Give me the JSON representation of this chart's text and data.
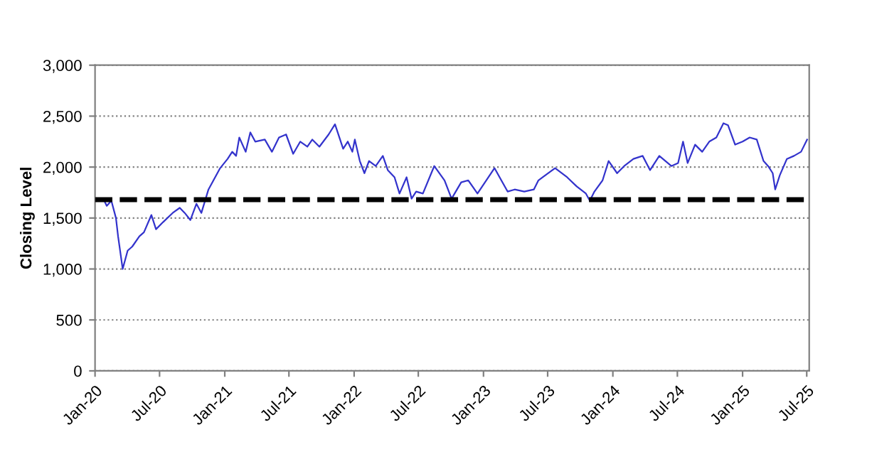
{
  "chart_data": {
    "type": "line",
    "ylabel": "Closing Level",
    "x": [
      "2020-01-01",
      "2020-01-27",
      "2020-02-03",
      "2020-02-16",
      "2020-02-29",
      "2020-03-06",
      "2020-03-19",
      "2020-04-02",
      "2020-04-15",
      "2020-05-05",
      "2020-05-18",
      "2020-06-08",
      "2020-06-21",
      "2020-07-11",
      "2020-08-07",
      "2020-08-27",
      "2020-09-10",
      "2020-09-26",
      "2020-10-13",
      "2020-10-27",
      "2020-11-16",
      "2020-12-19",
      "2021-01-09",
      "2021-01-22",
      "2021-02-02",
      "2021-02-11",
      "2021-03-01",
      "2021-03-14",
      "2021-03-28",
      "2021-04-24",
      "2021-05-14",
      "2021-06-03",
      "2021-06-23",
      "2021-07-13",
      "2021-08-02",
      "2021-08-22",
      "2021-09-05",
      "2021-09-25",
      "2021-10-21",
      "2021-11-08",
      "2021-12-01",
      "2021-12-14",
      "2021-12-27",
      "2022-01-03",
      "2022-01-17",
      "2022-01-30",
      "2022-02-12",
      "2022-03-03",
      "2022-03-23",
      "2022-04-06",
      "2022-04-25",
      "2022-05-09",
      "2022-05-29",
      "2022-06-12",
      "2022-06-25",
      "2022-07-14",
      "2022-08-15",
      "2022-09-13",
      "2022-10-03",
      "2022-10-30",
      "2022-11-19",
      "2022-12-15",
      "2023-02-01",
      "2023-03-10",
      "2023-03-30",
      "2023-04-26",
      "2023-05-23",
      "2023-06-05",
      "2023-07-22",
      "2023-08-25",
      "2023-09-21",
      "2023-10-17",
      "2023-10-28",
      "2023-11-10",
      "2023-12-03",
      "2023-12-20",
      "2024-01-13",
      "2024-02-02",
      "2024-02-28",
      "2024-03-25",
      "2024-04-15",
      "2024-05-11",
      "2024-06-14",
      "2024-07-03",
      "2024-07-17",
      "2024-07-30",
      "2024-08-20",
      "2024-09-09",
      "2024-09-29",
      "2024-10-19",
      "2024-11-08",
      "2024-11-21",
      "2024-12-11",
      "2025-01-01",
      "2025-01-21",
      "2025-02-10",
      "2025-03-01",
      "2025-03-14",
      "2025-03-27",
      "2025-04-03",
      "2025-04-16",
      "2025-05-06",
      "2025-05-26",
      "2025-06-15",
      "2025-07-02"
    ],
    "series": [
      {
        "color": "#3333cc",
        "values": [
          1670,
          1670,
          1620,
          1670,
          1500,
          1320,
          1000,
          1180,
          1220,
          1320,
          1360,
          1530,
          1390,
          1460,
          1550,
          1600,
          1550,
          1480,
          1640,
          1550,
          1780,
          1990,
          2080,
          2150,
          2110,
          2290,
          2150,
          2340,
          2250,
          2270,
          2150,
          2290,
          2320,
          2130,
          2250,
          2200,
          2270,
          2200,
          2320,
          2420,
          2180,
          2250,
          2150,
          2270,
          2060,
          1940,
          2060,
          2010,
          2110,
          1970,
          1900,
          1740,
          1900,
          1690,
          1760,
          1740,
          2010,
          1870,
          1690,
          1850,
          1870,
          1740,
          1990,
          1760,
          1780,
          1760,
          1780,
          1870,
          1990,
          1900,
          1810,
          1740,
          1670,
          1760,
          1870,
          2060,
          1940,
          2010,
          2080,
          2110,
          1970,
          2110,
          2010,
          2040,
          2250,
          2040,
          2220,
          2150,
          2250,
          2290,
          2430,
          2410,
          2220,
          2250,
          2290,
          2270,
          2060,
          2010,
          1940,
          1780,
          1920,
          2080,
          2110,
          2150,
          2270
        ]
      }
    ],
    "xlim": [
      "2020-01-01",
      "2025-07-08"
    ],
    "xticks": [
      {
        "value": "2020-01-01",
        "label": "Jan-20"
      },
      {
        "value": "2020-07-01",
        "label": "Jul-20"
      },
      {
        "value": "2021-01-01",
        "label": "Jan-21"
      },
      {
        "value": "2021-07-01",
        "label": "Jul-21"
      },
      {
        "value": "2022-01-01",
        "label": "Jan-22"
      },
      {
        "value": "2022-07-01",
        "label": "Jul-22"
      },
      {
        "value": "2023-01-01",
        "label": "Jan-23"
      },
      {
        "value": "2023-07-01",
        "label": "Jul-23"
      },
      {
        "value": "2024-01-01",
        "label": "Jan-24"
      },
      {
        "value": "2024-07-01",
        "label": "Jul-24"
      },
      {
        "value": "2025-01-01",
        "label": "Jan-25"
      },
      {
        "value": "2025-07-01",
        "label": "Jul-25"
      }
    ],
    "ylim": [
      0,
      3000
    ],
    "yticks": [
      0,
      500,
      {
        "value": 1000,
        "label": "1,000"
      },
      {
        "value": 1500,
        "label": "1,500"
      },
      {
        "value": 2000,
        "label": "2,000"
      },
      {
        "value": 2500,
        "label": "2,500"
      },
      {
        "value": 3000,
        "label": "3,000"
      }
    ],
    "grid": "y",
    "legend": false,
    "marker": "none",
    "line_style": "solid",
    "ref_lines": [
      {
        "axis": "y",
        "value": 1680,
        "color": "#000000",
        "line_style": "dashed"
      }
    ]
  }
}
